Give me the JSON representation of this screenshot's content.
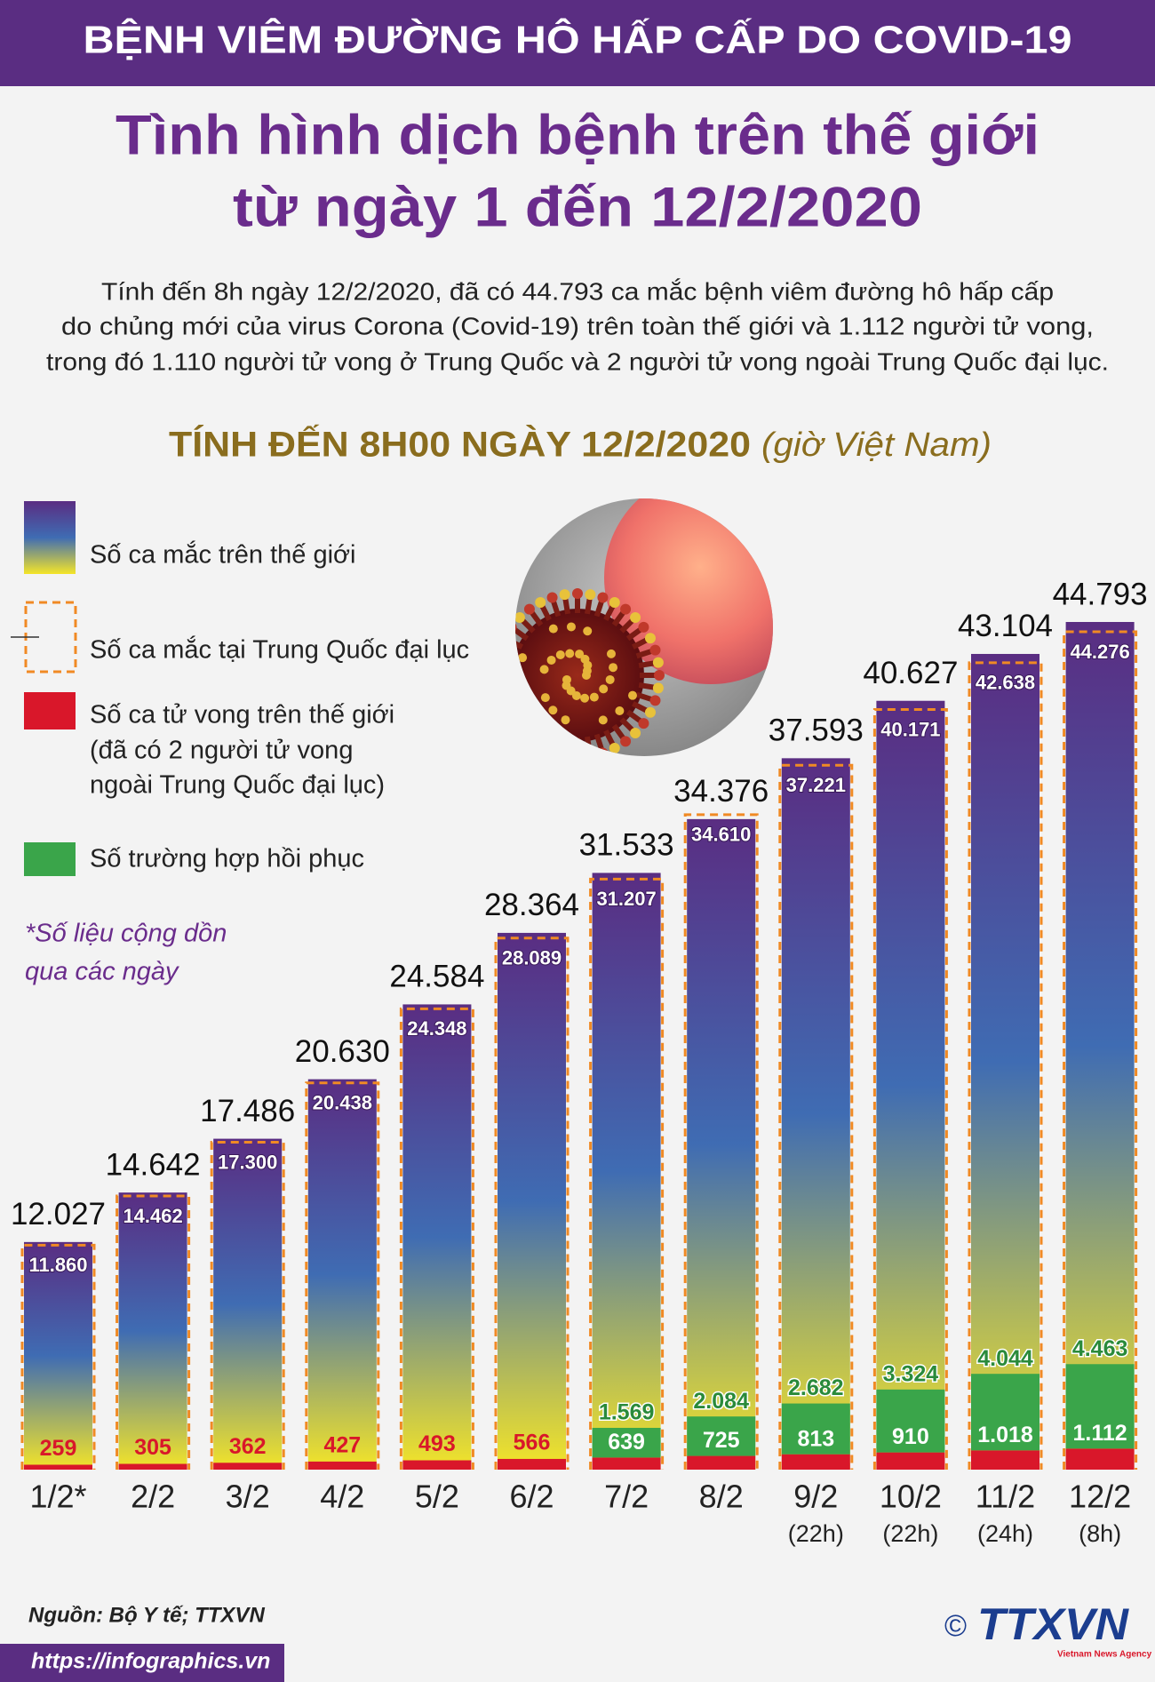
{
  "header": "BỆNH VIÊM ĐƯỜNG HÔ HẤP CẤP DO COVID-19",
  "title": [
    "Tình hình dịch bệnh trên thế giới",
    "từ ngày 1 đến 12/2/2020"
  ],
  "description": [
    "Tính đến 8h ngày 12/2/2020, đã có 44.793 ca mắc bệnh viêm đường hô hấp cấp",
    "do chủng mới của virus Corona (Covid-19) trên toàn thế giới và 1.112 người tử vong,",
    "trong đó 1.110 người tử vong ở Trung Quốc và 2 người tử vong ngoài Trung Quốc đại lục."
  ],
  "source": "Nguồn: Bộ Y tế; TTXVN",
  "url": "https://infographics.vn",
  "logo": {
    "copyright": "©",
    "name": "TTXVN",
    "tagline": "Vietnam News Agency"
  },
  "chart_data": {
    "type": "bar",
    "subtitle": "TÍNH ĐẾN 8H00 NGÀY 12/2/2020",
    "subtitle_note": "(giờ Việt Nam)",
    "footnote": [
      "*Số liệu cộng dồn",
      "qua các ngày"
    ],
    "categories": [
      "1/2*",
      "2/2",
      "3/2",
      "4/2",
      "5/2",
      "6/2",
      "7/2",
      "8/2",
      "9/2",
      "10/2",
      "11/2",
      "12/2"
    ],
    "category_notes": [
      null,
      null,
      null,
      null,
      null,
      null,
      null,
      null,
      "(22h)",
      "(22h)",
      "(24h)",
      "(8h)"
    ],
    "series": [
      {
        "name": "Số ca mắc trên thế giới",
        "gradient": [
          "#5a2d82",
          "#3f6cb3",
          "#f4e528"
        ],
        "values": [
          12027,
          14642,
          17486,
          20630,
          24584,
          28364,
          31533,
          34376,
          37593,
          40627,
          43104,
          44793
        ],
        "value_labels": [
          "12.027",
          "14.642",
          "17.486",
          "20.630",
          "24.584",
          "28.364",
          "31.533",
          "34.376",
          "37.593",
          "40.627",
          "43.104",
          "44.793"
        ]
      },
      {
        "name": "Số ca mắc tại Trung Quốc đại lục",
        "color": "#f08a24",
        "values": [
          11860,
          14462,
          17300,
          20438,
          24348,
          28089,
          31207,
          34610,
          37221,
          40171,
          42638,
          44276
        ],
        "value_labels": [
          "11.860",
          "14.462",
          "17.300",
          "20.438",
          "24.348",
          "28.089",
          "31.207",
          "34.610",
          "37.221",
          "40.171",
          "42.638",
          "44.276"
        ]
      },
      {
        "name": "Số ca tử vong trên thế giới",
        "note": [
          "(đã có 2 người tử vong",
          "ngoài Trung Quốc đại lục)"
        ],
        "color": "#d9172a",
        "values": [
          259,
          305,
          362,
          427,
          493,
          566,
          639,
          725,
          813,
          910,
          1018,
          1112
        ],
        "value_labels": [
          "259",
          "305",
          "362",
          "427",
          "493",
          "566",
          "639",
          "725",
          "813",
          "910",
          "1.018",
          "1.112"
        ]
      },
      {
        "name": "Số trường hợp hồi phục",
        "color": "#3aa54a",
        "values": [
          null,
          null,
          null,
          null,
          null,
          null,
          1569,
          2084,
          2682,
          3324,
          4044,
          4463
        ],
        "value_labels": [
          null,
          null,
          null,
          null,
          null,
          null,
          "1.569",
          "2.084",
          "2.682",
          "3.324",
          "4.044",
          "4.463"
        ]
      }
    ]
  }
}
